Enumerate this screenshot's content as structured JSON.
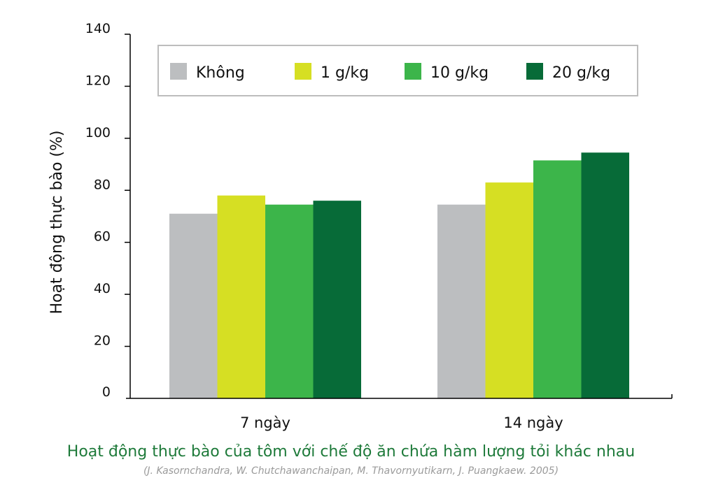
{
  "chart_data": {
    "type": "bar",
    "title": "Hoạt động thực bào của tôm với chế độ ăn chứa hàm lượng tỏi khác nhau",
    "subtitle": "(J. Kasornchandra, W. Chutchawanchaipan, M. Thavornyutikarn, J. Puangkaew. 2005)",
    "ylabel": "Hoạt động thực bào (%)",
    "xlabel": "",
    "ylim": [
      0,
      140
    ],
    "yticks": [
      "0",
      "20",
      "40",
      "60",
      "80",
      "100",
      "120",
      "140"
    ],
    "categories": [
      "7 ngày",
      "14 ngày"
    ],
    "series": [
      {
        "name": "Không",
        "color": "#bcbec0",
        "values": [
          71,
          74.5
        ]
      },
      {
        "name": "1 g/kg",
        "color": "#d6df23",
        "values": [
          78,
          83
        ]
      },
      {
        "name": "10 g/kg",
        "color": "#3cb54a",
        "values": [
          74.5,
          91.5
        ]
      },
      {
        "name": "20 g/kg",
        "color": "#076b38",
        "values": [
          76,
          94.5
        ]
      }
    ],
    "grid": false,
    "legend": "top, inside plot, single row"
  }
}
